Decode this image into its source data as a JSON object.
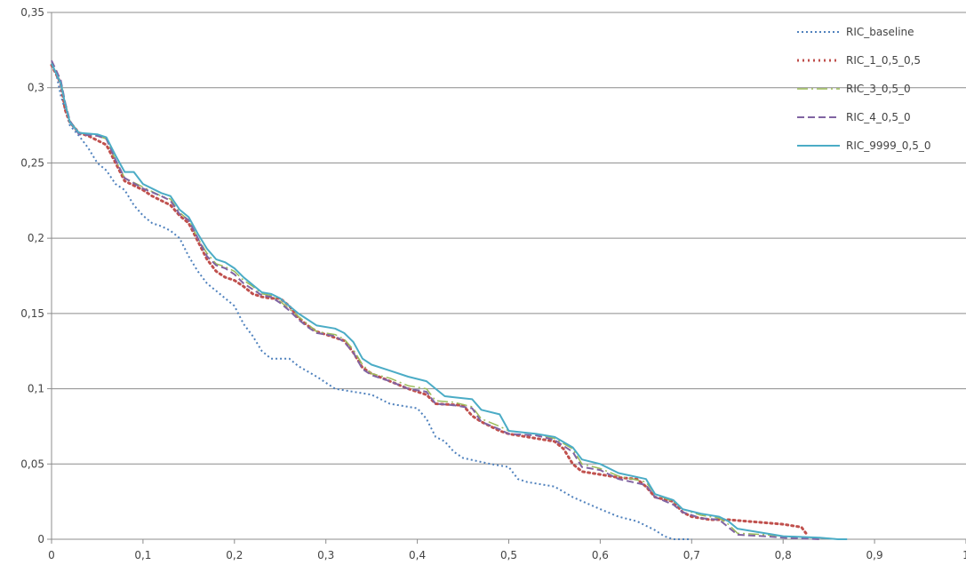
{
  "chart_data": {
    "type": "line",
    "title": "",
    "xlabel": "",
    "ylabel": "",
    "xlim": [
      0,
      1
    ],
    "ylim": [
      0,
      0.35
    ],
    "x_ticks": [
      "0",
      "0,1",
      "0,2",
      "0,3",
      "0,4",
      "0,5",
      "0,6",
      "0,7",
      "0,8",
      "0,9",
      "1"
    ],
    "y_ticks": [
      "0",
      "0,05",
      "0,1",
      "0,15",
      "0,2",
      "0,25",
      "0,3",
      "0,35"
    ],
    "grid": "horizontal",
    "legend_position": "top-right",
    "series": [
      {
        "name": "RIC_baseline",
        "color": "#4f81bd",
        "dash": "2,3",
        "width": 2,
        "points": [
          [
            0,
            0.315
          ],
          [
            0.005,
            0.31
          ],
          [
            0.01,
            0.295
          ],
          [
            0.015,
            0.285
          ],
          [
            0.02,
            0.275
          ],
          [
            0.03,
            0.268
          ],
          [
            0.04,
            0.26
          ],
          [
            0.05,
            0.25
          ],
          [
            0.06,
            0.245
          ],
          [
            0.07,
            0.236
          ],
          [
            0.08,
            0.232
          ],
          [
            0.09,
            0.222
          ],
          [
            0.1,
            0.215
          ],
          [
            0.11,
            0.21
          ],
          [
            0.12,
            0.208
          ],
          [
            0.13,
            0.205
          ],
          [
            0.14,
            0.2
          ],
          [
            0.15,
            0.188
          ],
          [
            0.16,
            0.178
          ],
          [
            0.17,
            0.17
          ],
          [
            0.18,
            0.165
          ],
          [
            0.19,
            0.16
          ],
          [
            0.2,
            0.155
          ],
          [
            0.21,
            0.143
          ],
          [
            0.22,
            0.135
          ],
          [
            0.23,
            0.125
          ],
          [
            0.24,
            0.12
          ],
          [
            0.26,
            0.12
          ],
          [
            0.27,
            0.115
          ],
          [
            0.29,
            0.108
          ],
          [
            0.31,
            0.1
          ],
          [
            0.33,
            0.098
          ],
          [
            0.35,
            0.096
          ],
          [
            0.37,
            0.09
          ],
          [
            0.39,
            0.088
          ],
          [
            0.4,
            0.087
          ],
          [
            0.41,
            0.08
          ],
          [
            0.42,
            0.068
          ],
          [
            0.43,
            0.065
          ],
          [
            0.44,
            0.058
          ],
          [
            0.45,
            0.054
          ],
          [
            0.48,
            0.05
          ],
          [
            0.5,
            0.048
          ],
          [
            0.51,
            0.04
          ],
          [
            0.52,
            0.038
          ],
          [
            0.55,
            0.035
          ],
          [
            0.57,
            0.028
          ],
          [
            0.6,
            0.02
          ],
          [
            0.62,
            0.015
          ],
          [
            0.64,
            0.012
          ],
          [
            0.66,
            0.006
          ],
          [
            0.67,
            0.002
          ],
          [
            0.68,
            0.0
          ],
          [
            0.7,
            0.0
          ]
        ]
      },
      {
        "name": "RIC_1_0,5_0,5",
        "color": "#c0504d",
        "dash": "2,4",
        "width": 3,
        "points": [
          [
            0,
            0.315
          ],
          [
            0.01,
            0.303
          ],
          [
            0.015,
            0.285
          ],
          [
            0.02,
            0.277
          ],
          [
            0.03,
            0.27
          ],
          [
            0.04,
            0.268
          ],
          [
            0.05,
            0.265
          ],
          [
            0.06,
            0.262
          ],
          [
            0.07,
            0.25
          ],
          [
            0.08,
            0.238
          ],
          [
            0.09,
            0.235
          ],
          [
            0.1,
            0.232
          ],
          [
            0.11,
            0.228
          ],
          [
            0.12,
            0.225
          ],
          [
            0.13,
            0.222
          ],
          [
            0.14,
            0.215
          ],
          [
            0.15,
            0.21
          ],
          [
            0.16,
            0.198
          ],
          [
            0.17,
            0.186
          ],
          [
            0.18,
            0.178
          ],
          [
            0.19,
            0.174
          ],
          [
            0.2,
            0.172
          ],
          [
            0.21,
            0.168
          ],
          [
            0.22,
            0.163
          ],
          [
            0.23,
            0.161
          ],
          [
            0.24,
            0.16
          ],
          [
            0.25,
            0.16
          ],
          [
            0.26,
            0.155
          ],
          [
            0.27,
            0.147
          ],
          [
            0.28,
            0.142
          ],
          [
            0.29,
            0.138
          ],
          [
            0.3,
            0.136
          ],
          [
            0.31,
            0.134
          ],
          [
            0.32,
            0.132
          ],
          [
            0.33,
            0.124
          ],
          [
            0.34,
            0.114
          ],
          [
            0.35,
            0.11
          ],
          [
            0.37,
            0.105
          ],
          [
            0.39,
            0.1
          ],
          [
            0.41,
            0.096
          ],
          [
            0.42,
            0.09
          ],
          [
            0.45,
            0.089
          ],
          [
            0.46,
            0.082
          ],
          [
            0.47,
            0.078
          ],
          [
            0.48,
            0.075
          ],
          [
            0.49,
            0.072
          ],
          [
            0.5,
            0.07
          ],
          [
            0.52,
            0.068
          ],
          [
            0.55,
            0.065
          ],
          [
            0.56,
            0.06
          ],
          [
            0.57,
            0.05
          ],
          [
            0.58,
            0.045
          ],
          [
            0.6,
            0.043
          ],
          [
            0.62,
            0.041
          ],
          [
            0.64,
            0.04
          ],
          [
            0.65,
            0.035
          ],
          [
            0.66,
            0.028
          ],
          [
            0.68,
            0.025
          ],
          [
            0.69,
            0.018
          ],
          [
            0.7,
            0.015
          ],
          [
            0.72,
            0.013
          ],
          [
            0.74,
            0.013
          ],
          [
            0.76,
            0.012
          ],
          [
            0.78,
            0.011
          ],
          [
            0.8,
            0.01
          ],
          [
            0.82,
            0.008
          ],
          [
            0.825,
            0.004
          ]
        ]
      },
      {
        "name": "RIC_3_0,5_0",
        "color": "#9bbb59",
        "dash": "12,4,2,4",
        "width": 1.5,
        "points": [
          [
            0,
            0.316
          ],
          [
            0.01,
            0.304
          ],
          [
            0.015,
            0.29
          ],
          [
            0.02,
            0.278
          ],
          [
            0.03,
            0.27
          ],
          [
            0.05,
            0.268
          ],
          [
            0.06,
            0.266
          ],
          [
            0.07,
            0.252
          ],
          [
            0.08,
            0.24
          ],
          [
            0.1,
            0.234
          ],
          [
            0.12,
            0.228
          ],
          [
            0.13,
            0.226
          ],
          [
            0.14,
            0.217
          ],
          [
            0.15,
            0.212
          ],
          [
            0.16,
            0.2
          ],
          [
            0.17,
            0.19
          ],
          [
            0.18,
            0.183
          ],
          [
            0.19,
            0.181
          ],
          [
            0.2,
            0.178
          ],
          [
            0.21,
            0.172
          ],
          [
            0.22,
            0.168
          ],
          [
            0.23,
            0.163
          ],
          [
            0.24,
            0.162
          ],
          [
            0.25,
            0.158
          ],
          [
            0.26,
            0.153
          ],
          [
            0.27,
            0.148
          ],
          [
            0.28,
            0.143
          ],
          [
            0.29,
            0.138
          ],
          [
            0.31,
            0.136
          ],
          [
            0.32,
            0.133
          ],
          [
            0.33,
            0.126
          ],
          [
            0.34,
            0.116
          ],
          [
            0.35,
            0.11
          ],
          [
            0.37,
            0.107
          ],
          [
            0.39,
            0.102
          ],
          [
            0.41,
            0.1
          ],
          [
            0.42,
            0.092
          ],
          [
            0.44,
            0.091
          ],
          [
            0.46,
            0.088
          ],
          [
            0.47,
            0.08
          ],
          [
            0.49,
            0.075
          ],
          [
            0.5,
            0.072
          ],
          [
            0.53,
            0.07
          ],
          [
            0.55,
            0.067
          ],
          [
            0.57,
            0.06
          ],
          [
            0.58,
            0.05
          ],
          [
            0.6,
            0.047
          ],
          [
            0.62,
            0.042
          ],
          [
            0.65,
            0.038
          ],
          [
            0.66,
            0.03
          ],
          [
            0.68,
            0.025
          ],
          [
            0.69,
            0.02
          ],
          [
            0.71,
            0.016
          ],
          [
            0.73,
            0.014
          ],
          [
            0.74,
            0.01
          ],
          [
            0.75,
            0.004
          ],
          [
            0.78,
            0.003
          ],
          [
            0.8,
            0.002
          ],
          [
            0.84,
            0.001
          ],
          [
            0.86,
            0.0
          ]
        ]
      },
      {
        "name": "RIC_4_0,5_0",
        "color": "#8064a2",
        "dash": "8,4",
        "width": 2,
        "points": [
          [
            0,
            0.318
          ],
          [
            0.01,
            0.305
          ],
          [
            0.015,
            0.29
          ],
          [
            0.02,
            0.278
          ],
          [
            0.03,
            0.269
          ],
          [
            0.05,
            0.268
          ],
          [
            0.06,
            0.266
          ],
          [
            0.07,
            0.252
          ],
          [
            0.08,
            0.24
          ],
          [
            0.1,
            0.233
          ],
          [
            0.12,
            0.228
          ],
          [
            0.13,
            0.225
          ],
          [
            0.14,
            0.216
          ],
          [
            0.15,
            0.212
          ],
          [
            0.16,
            0.2
          ],
          [
            0.17,
            0.188
          ],
          [
            0.18,
            0.182
          ],
          [
            0.19,
            0.18
          ],
          [
            0.2,
            0.176
          ],
          [
            0.21,
            0.17
          ],
          [
            0.22,
            0.166
          ],
          [
            0.23,
            0.162
          ],
          [
            0.24,
            0.161
          ],
          [
            0.25,
            0.157
          ],
          [
            0.26,
            0.152
          ],
          [
            0.27,
            0.146
          ],
          [
            0.28,
            0.141
          ],
          [
            0.29,
            0.137
          ],
          [
            0.31,
            0.135
          ],
          [
            0.32,
            0.131
          ],
          [
            0.33,
            0.124
          ],
          [
            0.34,
            0.113
          ],
          [
            0.35,
            0.109
          ],
          [
            0.37,
            0.105
          ],
          [
            0.39,
            0.1
          ],
          [
            0.41,
            0.098
          ],
          [
            0.42,
            0.09
          ],
          [
            0.44,
            0.089
          ],
          [
            0.46,
            0.087
          ],
          [
            0.47,
            0.078
          ],
          [
            0.49,
            0.073
          ],
          [
            0.5,
            0.07
          ],
          [
            0.53,
            0.069
          ],
          [
            0.55,
            0.066
          ],
          [
            0.57,
            0.058
          ],
          [
            0.58,
            0.048
          ],
          [
            0.6,
            0.046
          ],
          [
            0.62,
            0.04
          ],
          [
            0.65,
            0.036
          ],
          [
            0.66,
            0.028
          ],
          [
            0.68,
            0.023
          ],
          [
            0.69,
            0.018
          ],
          [
            0.71,
            0.014
          ],
          [
            0.73,
            0.013
          ],
          [
            0.74,
            0.008
          ],
          [
            0.75,
            0.003
          ],
          [
            0.78,
            0.002
          ],
          [
            0.8,
            0.001
          ],
          [
            0.84,
            0.0
          ]
        ]
      },
      {
        "name": "RIC_9999_0,5_0",
        "color": "#4bacc6",
        "dash": "",
        "width": 2,
        "points": [
          [
            0,
            0.316
          ],
          [
            0.01,
            0.303
          ],
          [
            0.015,
            0.289
          ],
          [
            0.02,
            0.277
          ],
          [
            0.03,
            0.27
          ],
          [
            0.05,
            0.269
          ],
          [
            0.06,
            0.267
          ],
          [
            0.07,
            0.255
          ],
          [
            0.08,
            0.244
          ],
          [
            0.09,
            0.244
          ],
          [
            0.1,
            0.236
          ],
          [
            0.12,
            0.23
          ],
          [
            0.13,
            0.228
          ],
          [
            0.14,
            0.219
          ],
          [
            0.15,
            0.214
          ],
          [
            0.16,
            0.203
          ],
          [
            0.17,
            0.193
          ],
          [
            0.18,
            0.186
          ],
          [
            0.19,
            0.184
          ],
          [
            0.2,
            0.18
          ],
          [
            0.21,
            0.174
          ],
          [
            0.22,
            0.169
          ],
          [
            0.23,
            0.164
          ],
          [
            0.24,
            0.163
          ],
          [
            0.25,
            0.16
          ],
          [
            0.26,
            0.155
          ],
          [
            0.27,
            0.15
          ],
          [
            0.28,
            0.146
          ],
          [
            0.29,
            0.142
          ],
          [
            0.31,
            0.14
          ],
          [
            0.32,
            0.137
          ],
          [
            0.33,
            0.131
          ],
          [
            0.34,
            0.12
          ],
          [
            0.35,
            0.116
          ],
          [
            0.37,
            0.112
          ],
          [
            0.39,
            0.108
          ],
          [
            0.41,
            0.105
          ],
          [
            0.42,
            0.1
          ],
          [
            0.43,
            0.095
          ],
          [
            0.46,
            0.093
          ],
          [
            0.47,
            0.086
          ],
          [
            0.49,
            0.083
          ],
          [
            0.5,
            0.072
          ],
          [
            0.53,
            0.07
          ],
          [
            0.55,
            0.068
          ],
          [
            0.57,
            0.061
          ],
          [
            0.58,
            0.053
          ],
          [
            0.6,
            0.05
          ],
          [
            0.62,
            0.044
          ],
          [
            0.65,
            0.04
          ],
          [
            0.66,
            0.03
          ],
          [
            0.68,
            0.026
          ],
          [
            0.69,
            0.02
          ],
          [
            0.71,
            0.017
          ],
          [
            0.73,
            0.015
          ],
          [
            0.74,
            0.012
          ],
          [
            0.75,
            0.007
          ],
          [
            0.77,
            0.005
          ],
          [
            0.79,
            0.003
          ],
          [
            0.8,
            0.002
          ],
          [
            0.84,
            0.001
          ],
          [
            0.86,
            0.0
          ],
          [
            0.87,
            0.0
          ]
        ]
      }
    ]
  }
}
